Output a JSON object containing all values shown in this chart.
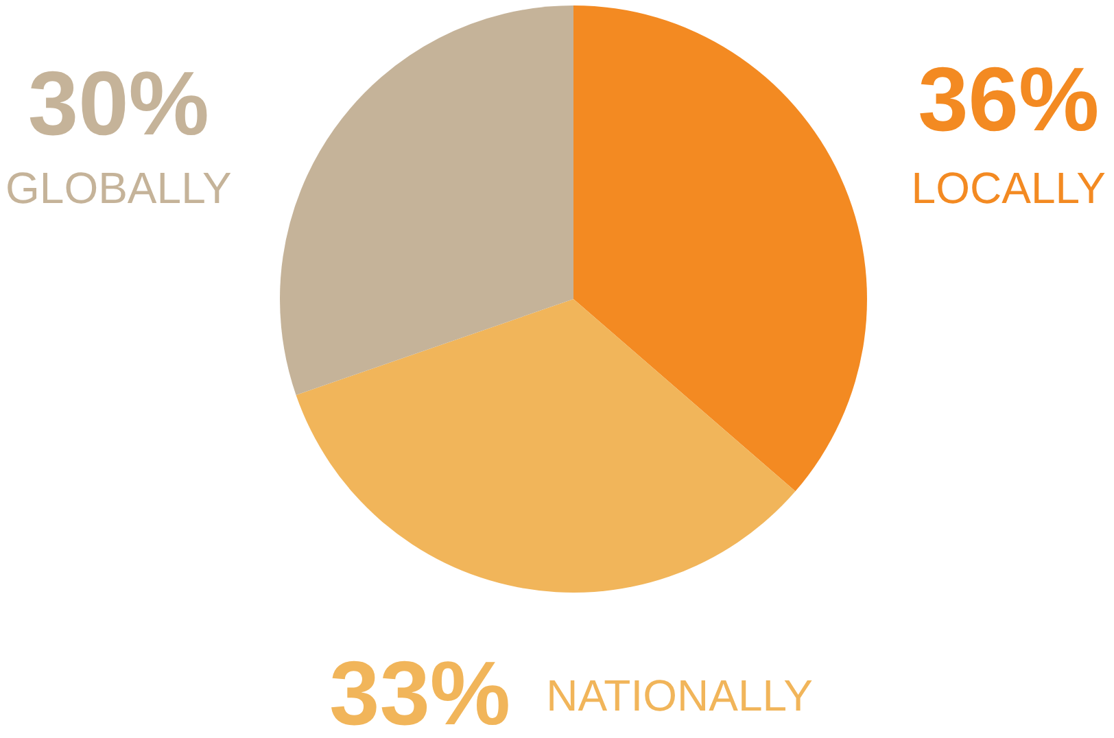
{
  "chart_data": {
    "type": "pie",
    "categories": [
      "LOCALLY",
      "NATIONALLY",
      "GLOBALLY"
    ],
    "values": [
      36,
      33,
      30
    ],
    "value_labels": [
      "36%",
      "33%",
      "30%"
    ],
    "colors": [
      "#f38a22",
      "#f1b55a",
      "#c5b399"
    ]
  }
}
